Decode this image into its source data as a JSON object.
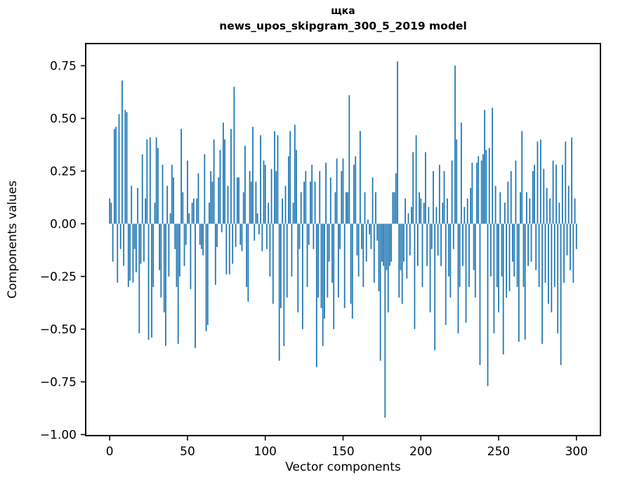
{
  "figure": {
    "title_line1": "щка",
    "title_line2": "news_upos_skipgram_300_5_2019 model",
    "xlabel": "Vector components",
    "ylabel": "Components values"
  },
  "chart_data": {
    "type": "bar",
    "title": "щка — news_upos_skipgram_300_5_2019 model",
    "xlabel": "Vector components",
    "ylabel": "Components values",
    "legend": null,
    "grid": false,
    "bar_color": "#1f77b4",
    "bar_width_units": 0.8,
    "x_start": 0,
    "x_ticks": [
      0,
      50,
      100,
      150,
      200,
      250,
      300
    ],
    "y_ticks": [
      0.75,
      0.5,
      0.25,
      0,
      -0.25,
      -0.5,
      -0.75,
      -1
    ],
    "y_tick_labels": [
      "0.75",
      "0.50",
      "0.25",
      "0.00",
      "−0.25",
      "−0.50",
      "−0.75",
      "−1.00"
    ],
    "xlim": [
      -15.44,
      315.44
    ],
    "ylim": [
      -1.005,
      0.855
    ],
    "values": [
      0.12,
      0.1,
      -0.18,
      0.45,
      0.46,
      -0.28,
      0.52,
      -0.12,
      0.68,
      -0.2,
      0.54,
      0.53,
      -0.3,
      -0.27,
      0.18,
      -0.28,
      -0.12,
      -0.23,
      0.17,
      -0.52,
      -0.19,
      0.33,
      -0.18,
      0.12,
      0.4,
      -0.55,
      0.41,
      -0.54,
      -0.3,
      0.1,
      0.41,
      0.36,
      -0.22,
      -0.35,
      0.28,
      -0.42,
      -0.58,
      0.18,
      -0.25,
      0.05,
      0.28,
      0.22,
      -0.12,
      -0.3,
      -0.57,
      -0.25,
      0.45,
      0.15,
      -0.2,
      -0.1,
      0.3,
      0.05,
      -0.31,
      0.1,
      0.12,
      -0.59,
      0.12,
      0.24,
      -0.1,
      -0.12,
      -0.15,
      0.33,
      -0.51,
      -0.48,
      0.1,
      0.25,
      0.2,
      0.4,
      -0.29,
      -0.11,
      0.22,
      0.35,
      -0.04,
      0.48,
      0.4,
      -0.24,
      0.18,
      -0.24,
      0.45,
      -0.19,
      0.65,
      -0.11,
      0.22,
      0.22,
      -0.1,
      -0.13,
      0.15,
      0.37,
      -0.3,
      -0.37,
      0.25,
      0.2,
      0.46,
      -0.08,
      0.2,
      0.05,
      -0.05,
      0.42,
      -0.13,
      0.3,
      0.28,
      -0.12,
      0.1,
      -0.25,
      0.26,
      -0.38,
      0.44,
      0.25,
      0.42,
      -0.65,
      -0.4,
      0.12,
      -0.58,
      0.18,
      -0.35,
      0.32,
      0.44,
      -0.25,
      0.1,
      0.47,
      0.35,
      -0.42,
      -0.12,
      0.15,
      -0.5,
      0.2,
      0.25,
      -0.3,
      -0.1,
      0.2,
      0.28,
      -0.12,
      0.2,
      -0.68,
      -0.35,
      0.25,
      -0.4,
      -0.58,
      -0.45,
      0.29,
      -0.35,
      -0.18,
      0.22,
      -0.28,
      -0.5,
      0.15,
      0.31,
      -0.35,
      -0.12,
      0.25,
      0.31,
      -0.4,
      0.15,
      0.15,
      0.61,
      -0.38,
      -0.45,
      0.28,
      0.32,
      -0.15,
      -0.25,
      0.44,
      -0.12,
      -0.3,
      0.15,
      -0.18,
      0.02,
      -0.05,
      -0.12,
      0.22,
      -0.28,
      0.15,
      -0.08,
      -0.32,
      -0.65,
      -0.18,
      -0.2,
      -0.92,
      -0.22,
      -0.42,
      -0.2,
      -0.18,
      0.15,
      0.15,
      0.24,
      0.77,
      -0.35,
      -0.22,
      -0.38,
      -0.18,
      0.12,
      -0.26,
      0.05,
      -0.15,
      0.08,
      0.34,
      -0.5,
      0.42,
      -0.2,
      0.15,
      0.12,
      -0.3,
      0.1,
      0.34,
      -0.2,
      0.08,
      -0.42,
      -0.12,
      0.25,
      -0.6,
      0.08,
      -0.15,
      0.28,
      -0.2,
      0.1,
      0.25,
      -0.48,
      0.12,
      -0.25,
      -0.35,
      0.3,
      -0.12,
      0.75,
      0.4,
      -0.52,
      -0.3,
      0.48,
      -0.2,
      0.08,
      -0.47,
      0.12,
      -0.3,
      0.17,
      0.29,
      -0.22,
      -0.35,
      0.29,
      0.32,
      -0.67,
      0.3,
      0.33,
      0.54,
      0.35,
      -0.77,
      0.36,
      -0.25,
      0.55,
      -0.52,
      0.18,
      -0.3,
      -0.42,
      0.15,
      -0.25,
      -0.62,
      0.1,
      -0.35,
      0.2,
      -0.32,
      0.25,
      -0.18,
      -0.25,
      0.3,
      -0.3,
      -0.56,
      0.15,
      0.44,
      -0.3,
      -0.55,
      0.15,
      -0.2,
      0.12,
      -0.18,
      0.25,
      0.28,
      -0.22,
      0.39,
      -0.3,
      0.4,
      -0.57,
      0.26,
      -0.28,
      0.17,
      -0.38,
      0.12,
      -0.42,
      0.3,
      -0.3,
      0.28,
      -0.52,
      0.1,
      -0.67,
      0.28,
      -0.28,
      0.39,
      -0.15,
      0.18,
      -0.22,
      0.41,
      -0.28,
      0.12,
      -0.12
    ]
  }
}
